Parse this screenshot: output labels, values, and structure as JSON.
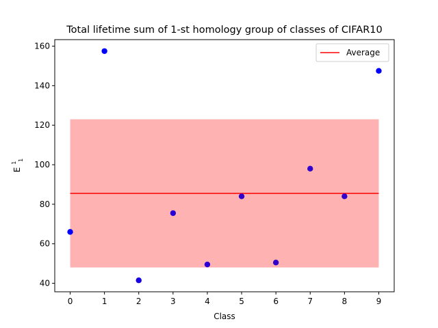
{
  "chart_data": {
    "type": "scatter",
    "title": "Total lifetime sum of 1-st homology group of classes of CIFAR10",
    "xlabel": "Class",
    "ylabel": "E",
    "ylabel_superscript": "1",
    "ylabel_subscript": "1",
    "x": [
      0,
      1,
      2,
      3,
      4,
      5,
      6,
      7,
      8,
      9
    ],
    "y": [
      66,
      157.5,
      41.5,
      75.5,
      49.5,
      84,
      50.5,
      98,
      84,
      147.5
    ],
    "point_colors": [
      "#0000ff",
      "#0000ff",
      "#1700e7",
      "#2600d8",
      "#2a00d4",
      "#3100cd",
      "#3100cd",
      "#3100cd",
      "#3100cd",
      "#0000ff"
    ],
    "average": {
      "name": "Average",
      "value": 85.5,
      "color": "#ff0000"
    },
    "band": {
      "lower": 48,
      "upper": 123,
      "color": "#ff0000",
      "alpha": 0.3
    },
    "xlim": [
      -0.45,
      9.45
    ],
    "ylim": [
      35.7,
      163.3
    ],
    "xticks": [
      0,
      1,
      2,
      3,
      4,
      5,
      6,
      7,
      8,
      9
    ],
    "yticks": [
      40,
      60,
      80,
      100,
      120,
      140,
      160
    ],
    "grid": false,
    "legend_position": "top-right"
  }
}
